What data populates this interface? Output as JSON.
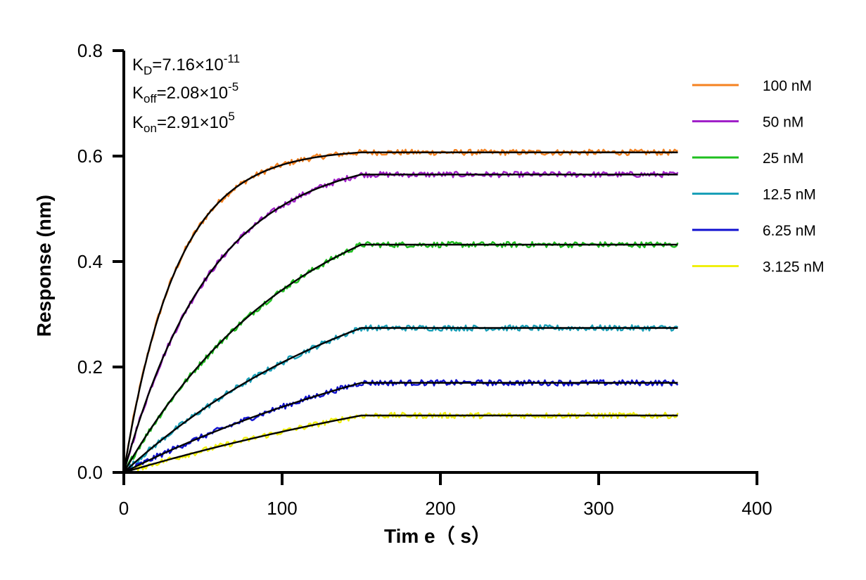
{
  "chart_data": {
    "type": "line",
    "xlabel": "Tim e（ s）",
    "ylabel": "Response (nm)",
    "xlim": [
      0,
      400
    ],
    "ylim": [
      0,
      0.8
    ],
    "x_ticks": [
      "0",
      "100",
      "200",
      "300",
      "400"
    ],
    "y_ticks": [
      "0.0",
      "0.2",
      "0.4",
      "0.6",
      "0.8"
    ],
    "x_tick_values": [
      0,
      100,
      200,
      300,
      400
    ],
    "y_tick_values": [
      0,
      0.2,
      0.4,
      0.6,
      0.8
    ],
    "grid": false,
    "legend_position": "right",
    "association_end": 150,
    "time_end": 350,
    "annotations": {
      "kd": {
        "main": "K",
        "sub": "D",
        "text": "=7.16×10",
        "sup": "-11"
      },
      "koff": {
        "main": "K",
        "sub": "off",
        "text": "=2.08×10",
        "sup": "-5"
      },
      "kon": {
        "main": "K",
        "sub": "on",
        "text": "=2.91×10",
        "sup": "5"
      }
    },
    "series": [
      {
        "name": "100 nM",
        "color": "#f58220",
        "plateau": 0.607,
        "k": 0.03
      },
      {
        "name": "50 nM",
        "color": "#a020c8",
        "plateau": 0.565,
        "k": 0.018
      },
      {
        "name": "25 nM",
        "color": "#1fbf1f",
        "plateau": 0.432,
        "k": 0.009
      },
      {
        "name": "12.5 nM",
        "color": "#1aa0b8",
        "plateau": 0.274,
        "k": 0.006
      },
      {
        "name": "6.25 nM",
        "color": "#1010d0",
        "plateau": 0.17,
        "k": 0.004
      },
      {
        "name": "3.125 nM",
        "color": "#f0f010",
        "plateau": 0.108,
        "k": 0.003
      }
    ],
    "fit_color": "#000000"
  }
}
